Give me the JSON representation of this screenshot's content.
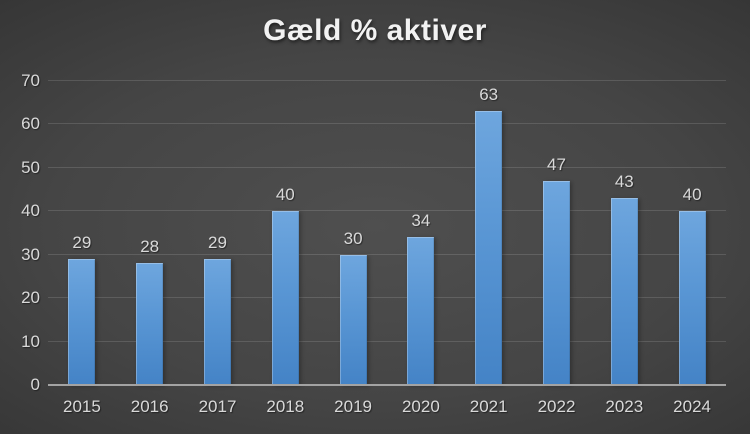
{
  "chart_data": {
    "type": "bar",
    "title": "Gæld % aktiver",
    "categories": [
      "2015",
      "2016",
      "2017",
      "2018",
      "2019",
      "2020",
      "2021",
      "2022",
      "2023",
      "2024"
    ],
    "values": [
      29,
      28,
      29,
      40,
      30,
      34,
      63,
      47,
      43,
      40
    ],
    "xlabel": "",
    "ylabel": "",
    "ylim": [
      0,
      70
    ],
    "ytick_step": 10,
    "yticks": [
      0,
      10,
      20,
      30,
      40,
      50,
      60,
      70
    ],
    "grid": true,
    "data_labels": true,
    "legend": "none",
    "colors": {
      "bar_top": "#6EA6DE",
      "bar_bottom": "#4483C6",
      "background_center": "#4F4F4F",
      "background_edge": "#242424",
      "gridline": "rgba(255,255,255,0.13)",
      "axis_line": "#A3A3A3",
      "label": "#D9D9D9",
      "title": "#F2F2F2"
    }
  }
}
